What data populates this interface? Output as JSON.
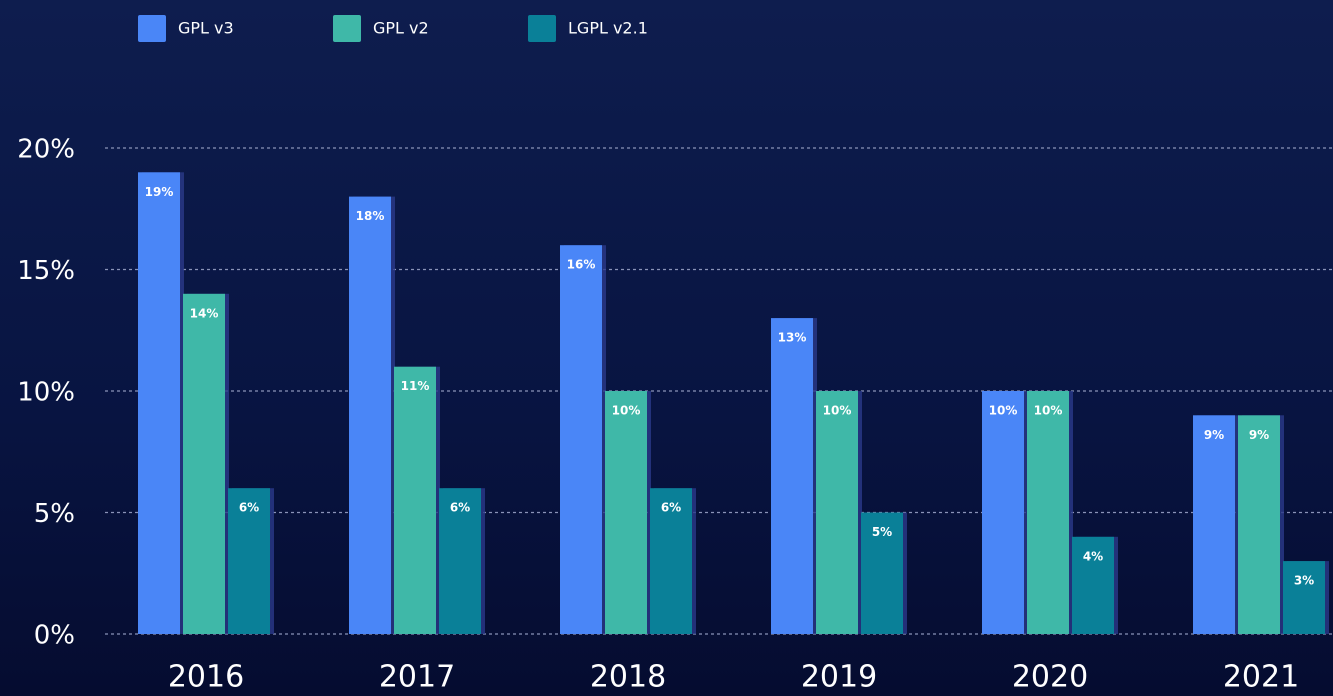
{
  "chart_data": {
    "type": "bar",
    "categories": [
      "2016",
      "2017",
      "2018",
      "2019",
      "2020",
      "2021"
    ],
    "series": [
      {
        "name": "GPL v3",
        "color": "#4a86f7",
        "values": [
          19,
          18,
          16,
          13,
          10,
          9
        ],
        "value_labels": [
          "19%",
          "18%",
          "16%",
          "13%",
          "10%",
          "9%"
        ]
      },
      {
        "name": "GPL v2",
        "color": "#3fb8a8",
        "values": [
          14,
          11,
          10,
          10,
          10,
          9
        ],
        "value_labels": [
          "14%",
          "11%",
          "10%",
          "10%",
          "10%",
          "9%"
        ]
      },
      {
        "name": "LGPL v2.1",
        "color": "#0a8098",
        "values": [
          6,
          6,
          6,
          5,
          4,
          3
        ],
        "value_labels": [
          "6%",
          "6%",
          "6%",
          "5%",
          "4%",
          "3%"
        ]
      }
    ],
    "ylim": [
      0,
      20
    ],
    "yticks": [
      {
        "value": 0,
        "label": "0%"
      },
      {
        "value": 5,
        "label": "5%"
      },
      {
        "value": 10,
        "label": "10%"
      },
      {
        "value": 15,
        "label": "15%"
      },
      {
        "value": 20,
        "label": "20%"
      }
    ],
    "grid": true
  }
}
